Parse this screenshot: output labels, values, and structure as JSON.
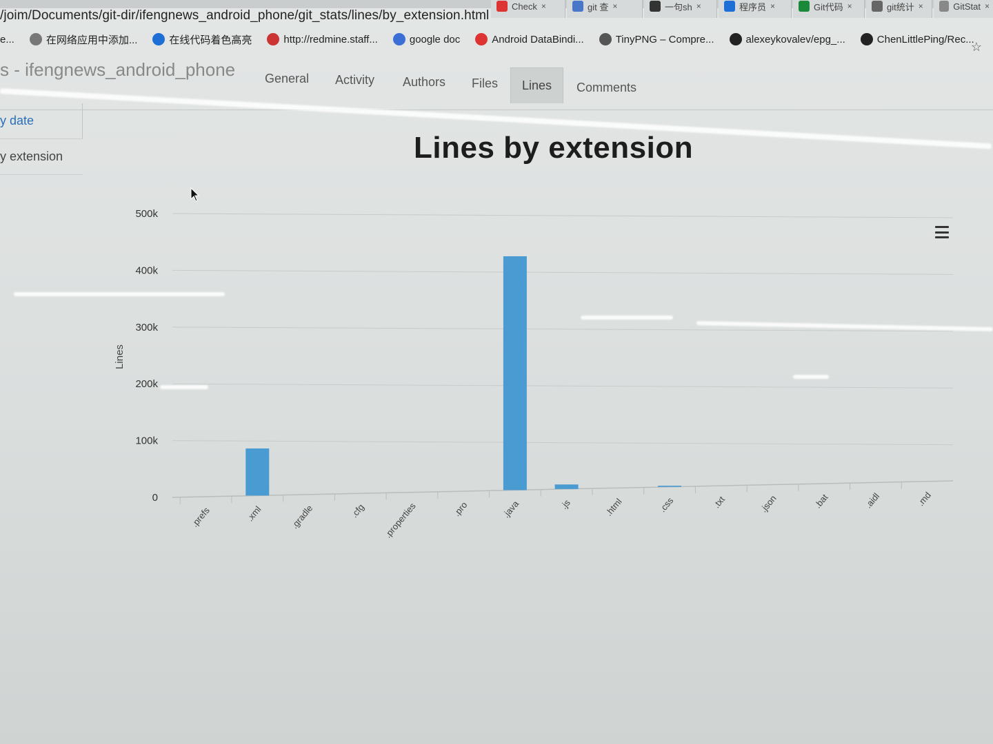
{
  "browser": {
    "tabs": [
      {
        "label": "Check",
        "favicon_color": "#d33"
      },
      {
        "label": "git 查",
        "favicon_color": "#4a78c8"
      },
      {
        "label": "一句sh",
        "favicon_color": "#333"
      },
      {
        "label": "程序员",
        "favicon_color": "#1d6fd6"
      },
      {
        "label": "Git代码",
        "favicon_color": "#1a8a3a"
      },
      {
        "label": "git统计",
        "favicon_color": "#666"
      },
      {
        "label": "GitStat",
        "favicon_color": "#888"
      }
    ],
    "url": "/joim/Documents/git-dir/ifengnews_android_phone/git_stats/lines/by_extension.html",
    "bookmarks": [
      {
        "label": "e...",
        "icon_color": "#777"
      },
      {
        "label": "在网络应用中添加...",
        "icon_color": "#777"
      },
      {
        "label": "在线代码着色高亮",
        "icon_color": "#1d6fd6"
      },
      {
        "label": "http://redmine.staff...",
        "icon_color": "#c33"
      },
      {
        "label": "google doc",
        "icon_color": "#3b6fd6"
      },
      {
        "label": "Android DataBindi...",
        "icon_color": "#d33"
      },
      {
        "label": "TinyPNG – Compre...",
        "icon_color": "#555"
      },
      {
        "label": "alexeykovalev/epg_...",
        "icon_color": "#222"
      },
      {
        "label": "ChenLittlePing/Rec...",
        "icon_color": "#222"
      }
    ]
  },
  "app": {
    "brand": "s - ifengnews_android_phone",
    "nav": [
      "General",
      "Activity",
      "Authors",
      "Files",
      "Lines",
      "Comments"
    ],
    "active_nav": "Lines",
    "sidebar": [
      "y date",
      "y extension"
    ]
  },
  "chart_data": {
    "type": "bar",
    "title": "Lines by extension",
    "ylabel": "Lines",
    "xlabel": "",
    "categories": [
      ".prefs",
      ".xml",
      ".gradle",
      ".cfg",
      ".properties",
      ".pro",
      ".java",
      ".js",
      ".html",
      ".css",
      ".txt",
      ".json",
      ".bat",
      ".aidl",
      ".md"
    ],
    "values": [
      0,
      83000,
      0,
      0,
      0,
      0,
      412000,
      8000,
      0,
      2000,
      0,
      0,
      0,
      0,
      0
    ],
    "yticks": [
      "0",
      "100k",
      "200k",
      "300k",
      "400k",
      "500k"
    ],
    "ylim": [
      0,
      500000
    ],
    "bar_color": "#4a9bd2",
    "grid": true
  }
}
